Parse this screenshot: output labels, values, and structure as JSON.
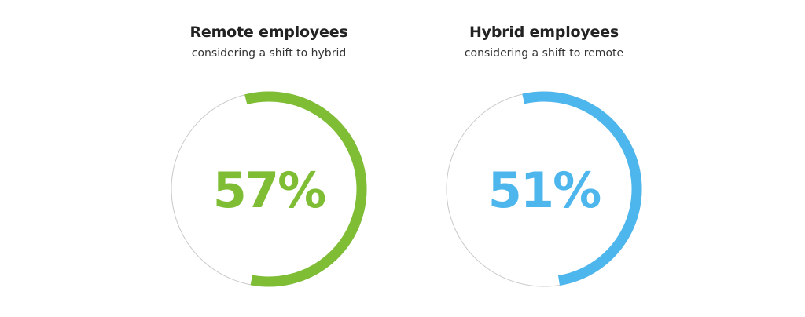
{
  "chart_data": [
    {
      "type": "gauge",
      "title": "Remote employees",
      "subtitle": "considering a shift to hybrid",
      "value": 57,
      "value_label": "57%",
      "color": "#7fbd34",
      "track_color": "#c9c9c9"
    },
    {
      "type": "gauge",
      "title": "Hybrid employees",
      "subtitle": "considering a shift to remote",
      "value": 51,
      "value_label": "51%",
      "color": "#4db6ec",
      "track_color": "#c9c9c9"
    }
  ]
}
